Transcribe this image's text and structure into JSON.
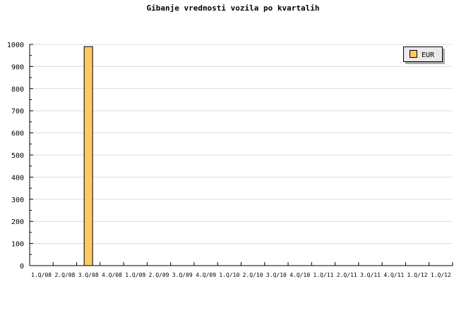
{
  "chart_data": {
    "type": "bar",
    "title": "Gibanje vrednosti vozila po kvartalih",
    "categories": [
      "1.Q/08",
      "2.Q/08",
      "3.Q/08",
      "4.Q/08",
      "1.Q/09",
      "2.Q/09",
      "3.Q/09",
      "4.Q/09",
      "1.Q/10",
      "2.Q/10",
      "3.Q/10",
      "4.Q/10",
      "1.Q/11",
      "2.Q/11",
      "3.Q/11",
      "4.Q/11",
      "1.Q/12",
      "1.Q/12"
    ],
    "series": [
      {
        "name": "EUR",
        "color": "#ffc966",
        "values": [
          0,
          0,
          990,
          0,
          0,
          0,
          0,
          0,
          0,
          0,
          0,
          0,
          0,
          0,
          0,
          0,
          0,
          0
        ]
      }
    ],
    "ylim": [
      0,
      1000
    ],
    "yticks": [
      0,
      100,
      200,
      300,
      400,
      500,
      600,
      700,
      800,
      900,
      1000
    ],
    "grid": true,
    "legend": "top-right"
  }
}
